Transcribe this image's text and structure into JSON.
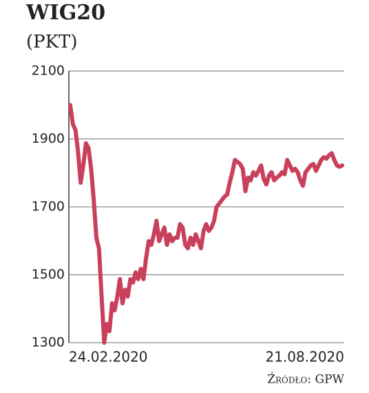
{
  "chart_data": {
    "type": "line",
    "title": "WIG20",
    "subtitle": "(PKT)",
    "source": "Źródło: GPW",
    "categories": [
      "24.02.2020",
      null,
      null,
      null,
      null,
      null,
      null,
      null,
      null,
      null,
      null,
      null,
      null,
      null,
      null,
      null,
      null,
      null,
      null,
      null,
      null,
      null,
      null,
      null,
      null,
      null,
      null,
      null,
      null,
      null,
      null,
      null,
      null,
      null,
      null,
      null,
      null,
      null,
      null,
      null,
      null,
      null,
      null,
      null,
      null,
      null,
      null,
      null,
      null,
      null,
      null,
      null,
      null,
      null,
      null,
      null,
      null,
      null,
      null,
      null,
      null,
      null,
      null,
      null,
      null,
      null,
      null,
      null,
      null,
      null,
      null,
      null,
      null,
      null,
      null,
      null,
      null,
      null,
      null,
      null,
      null,
      null,
      null,
      null,
      null,
      null,
      null,
      null,
      null,
      null,
      null,
      null,
      null,
      null,
      null,
      null,
      null,
      null,
      null,
      null,
      null,
      null,
      null,
      null,
      "21.08.2020"
    ],
    "series": [
      {
        "color": "#c9405c",
        "values": [
          2000,
          1944,
          1927,
          1862,
          1771,
          1822,
          1887,
          1873,
          1812,
          1720,
          1609,
          1578,
          1436,
          1300,
          1355,
          1334,
          1416,
          1395,
          1436,
          1487,
          1416,
          1456,
          1436,
          1487,
          1477,
          1507,
          1487,
          1517,
          1487,
          1548,
          1599,
          1588,
          1619,
          1659,
          1599,
          1619,
          1639,
          1588,
          1619,
          1599,
          1609,
          1609,
          1649,
          1639,
          1588,
          1578,
          1609,
          1588,
          1619,
          1599,
          1578,
          1629,
          1649,
          1629,
          1639,
          1659,
          1700,
          1710,
          1720,
          1730,
          1736,
          1771,
          1802,
          1838,
          1832,
          1826,
          1812,
          1746,
          1786,
          1778,
          1802,
          1792,
          1806,
          1822,
          1782,
          1766,
          1792,
          1802,
          1778,
          1786,
          1792,
          1802,
          1796,
          1838,
          1822,
          1806,
          1812,
          1802,
          1778,
          1762,
          1802,
          1812,
          1822,
          1826,
          1806,
          1822,
          1838,
          1846,
          1842,
          1852,
          1858,
          1838,
          1822,
          1818,
          1822
        ]
      }
    ],
    "ylim": [
      1300,
      2100
    ],
    "yticks": [
      1300,
      1500,
      1700,
      1900,
      2100
    ],
    "grid": true
  }
}
